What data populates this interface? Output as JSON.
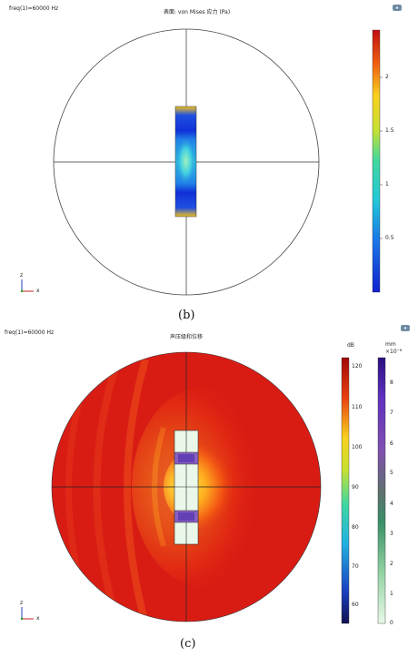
{
  "panel_b": {
    "freq_label": "freq(1)=60000 Hz",
    "title": "表面: von Mises 应力 (Pa)",
    "colorbar_ticks": [
      "2",
      "1.5",
      "1",
      "0.5"
    ],
    "axis_z": "z",
    "axis_x": "x",
    "caption": "(b)",
    "corner_icon": "camera-icon"
  },
  "panel_c": {
    "freq_label": "freq(1)=60000 Hz",
    "title": "声压级和位移",
    "colorbar1_unit": "dB",
    "colorbar1_ticks": [
      "120",
      "110",
      "100",
      "90",
      "80",
      "70",
      "60"
    ],
    "colorbar2_unit": "mm",
    "colorbar2_exp": "×10⁻⁸",
    "colorbar2_ticks": [
      "8",
      "7",
      "6",
      "5",
      "4",
      "3",
      "2",
      "1",
      "0"
    ],
    "axis_z": "z",
    "axis_x": "x",
    "caption": "(c)",
    "corner_icon": "camera-icon"
  }
}
